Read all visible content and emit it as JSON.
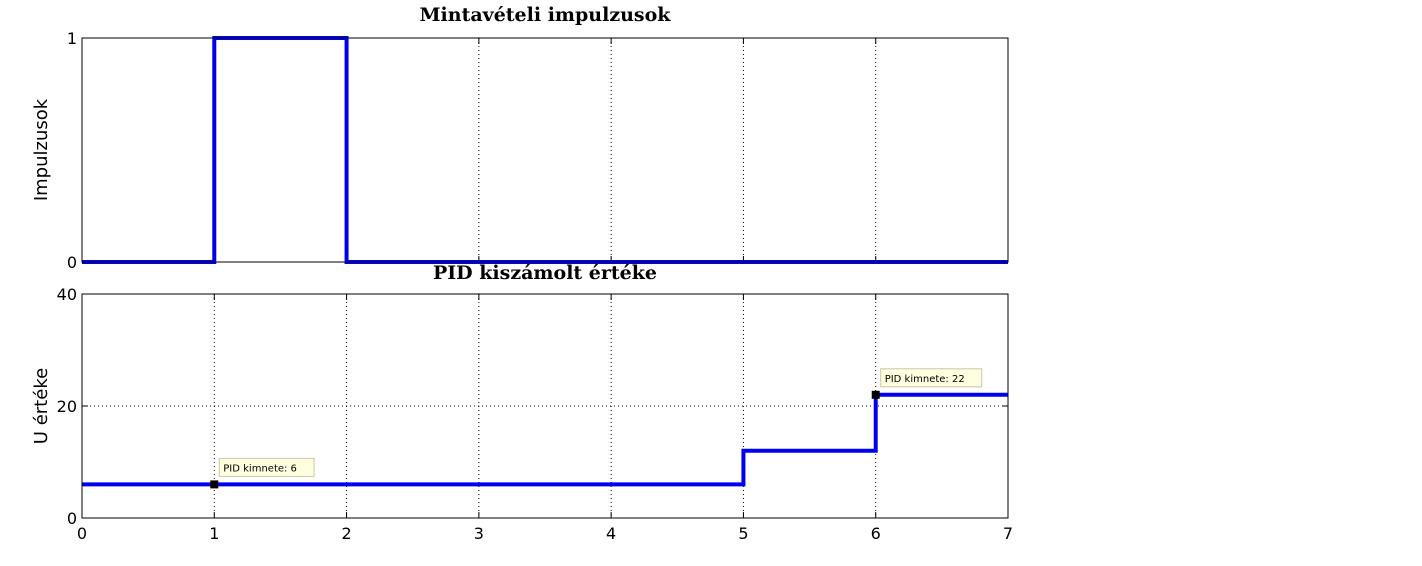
{
  "chart_data": [
    {
      "type": "line",
      "line_style": "step",
      "title": "Mintavételi impulzusok",
      "ylabel": "Impulzusok",
      "xlabel": "",
      "xlim": [
        0,
        7
      ],
      "ylim": [
        0,
        1
      ],
      "yticks": [
        0,
        1
      ],
      "xticks": [
        1,
        2,
        3,
        4,
        5,
        6
      ],
      "xtick_labels_shown": false,
      "grid": true,
      "series": [
        {
          "color": "#0000ee",
          "x": [
            0,
            1,
            1,
            2,
            2,
            7
          ],
          "y": [
            0,
            0,
            1,
            1,
            0,
            0
          ]
        }
      ]
    },
    {
      "type": "line",
      "line_style": "step",
      "title": "PID kiszámolt értéke",
      "ylabel": "U értéke",
      "xlabel": "",
      "xlim": [
        0,
        7
      ],
      "ylim": [
        0,
        40
      ],
      "yticks": [
        0,
        20,
        40
      ],
      "xticks": [
        0,
        1,
        2,
        3,
        4,
        5,
        6,
        7
      ],
      "xtick_labels_shown": true,
      "grid": true,
      "series": [
        {
          "color": "#0000ee",
          "x": [
            0,
            5,
            5,
            6,
            6,
            7
          ],
          "y": [
            6,
            6,
            12,
            12,
            22,
            22
          ]
        }
      ],
      "annotations": [
        {
          "x": 1,
          "y": 6,
          "text": "PID kimnete: 6"
        },
        {
          "x": 6,
          "y": 22,
          "text": "PID kimnete: 22"
        }
      ]
    }
  ]
}
